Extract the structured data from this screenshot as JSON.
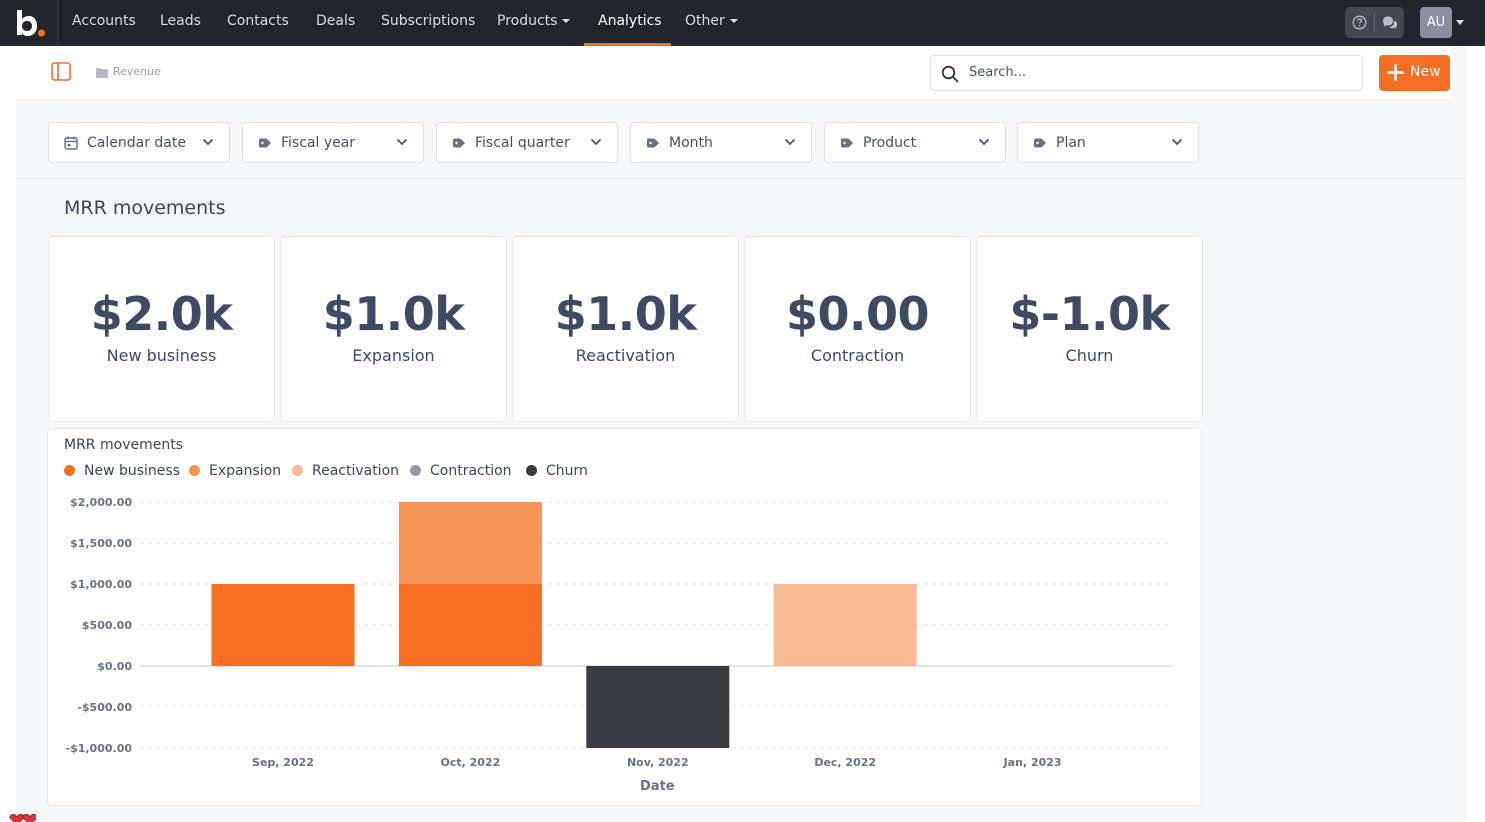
{
  "nav": {
    "items": [
      {
        "label": "Accounts"
      },
      {
        "label": "Leads"
      },
      {
        "label": "Contacts"
      },
      {
        "label": "Deals"
      },
      {
        "label": "Subscriptions"
      },
      {
        "label": "Products"
      },
      {
        "label": "Analytics"
      },
      {
        "label": "Other"
      }
    ],
    "active": "Analytics",
    "avatar_initials": "AU"
  },
  "header": {
    "breadcrumb": "Revenue",
    "search_placeholder": "Search...",
    "new_button": "New"
  },
  "filters": [
    {
      "label": "Calendar date",
      "icon": "calendar-icon"
    },
    {
      "label": "Fiscal year",
      "icon": "tag-icon"
    },
    {
      "label": "Fiscal quarter",
      "icon": "tag-icon"
    },
    {
      "label": "Month",
      "icon": "tag-icon"
    },
    {
      "label": "Product",
      "icon": "tag-icon"
    },
    {
      "label": "Plan",
      "icon": "tag-icon"
    }
  ],
  "section": {
    "title": "MRR movements"
  },
  "kpis": [
    {
      "value": "$2.0k",
      "label": "New business"
    },
    {
      "value": "$1.0k",
      "label": "Expansion"
    },
    {
      "value": "$1.0k",
      "label": "Reactivation"
    },
    {
      "value": "$0.00",
      "label": "Contraction"
    },
    {
      "value": "$-1.0k",
      "label": "Churn"
    }
  ],
  "colors": {
    "accent": "#f46f24",
    "nav_bg": "#23252d",
    "new_business": "#f76f22",
    "expansion": "#f59457",
    "reactivation": "#f8bb96",
    "contraction": "#9499a6",
    "churn": "#3a3b40"
  },
  "chart_data": {
    "type": "bar",
    "stacked": true,
    "title": "MRR movements",
    "xlabel": "Date",
    "ylabel": "",
    "categories": [
      "Sep, 2022",
      "Oct, 2022",
      "Nov, 2022",
      "Dec, 2022",
      "Jan, 2023"
    ],
    "series": [
      {
        "name": "New business",
        "color": "#f76f22",
        "values": [
          1000,
          1000,
          0,
          0,
          0
        ]
      },
      {
        "name": "Expansion",
        "color": "#f59457",
        "values": [
          0,
          1000,
          0,
          0,
          0
        ]
      },
      {
        "name": "Reactivation",
        "color": "#f8bb96",
        "values": [
          0,
          0,
          0,
          1000,
          0
        ]
      },
      {
        "name": "Contraction",
        "color": "#9499a6",
        "values": [
          0,
          0,
          0,
          0,
          0
        ]
      },
      {
        "name": "Churn",
        "color": "#3a3b40",
        "values": [
          0,
          0,
          -1000,
          0,
          0
        ]
      }
    ],
    "ylim": [
      -1000,
      2000
    ],
    "yticks": [
      2000,
      1500,
      1000,
      500,
      0,
      -500,
      -1000
    ],
    "ytick_labels": [
      "$2,000.00",
      "$1,500.00",
      "$1,000.00",
      "$500.00",
      "$0.00",
      "-$500.00",
      "-$1,000.00"
    ],
    "legend_position": "top-left",
    "grid": true
  }
}
